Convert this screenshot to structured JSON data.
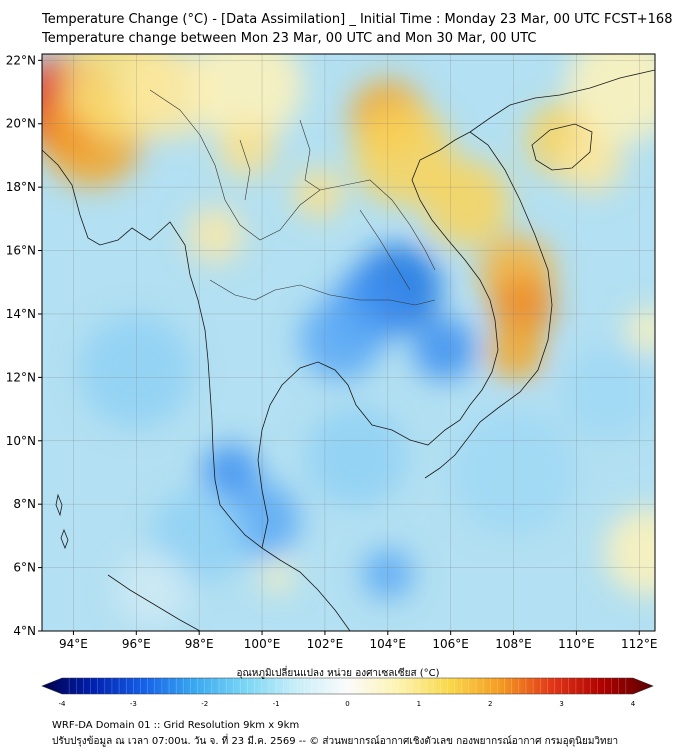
{
  "header": {
    "title_line1": "Temperature Change (°C) - [Data Assimilation] _ Initial Time : Monday 23 Mar, 00 UTC FCST+168",
    "title_line2": "Temperature change between Mon 23 Mar, 00 UTC and Mon 30 Mar, 00 UTC"
  },
  "map": {
    "lon_range": [
      93,
      112.5
    ],
    "lat_range": [
      4,
      22.2
    ],
    "lon_ticks": [
      {
        "value": 94,
        "label": "94°E"
      },
      {
        "value": 96,
        "label": "96°E"
      },
      {
        "value": 98,
        "label": "98°E"
      },
      {
        "value": 100,
        "label": "100°E"
      },
      {
        "value": 102,
        "label": "102°E"
      },
      {
        "value": 104,
        "label": "104°E"
      },
      {
        "value": 106,
        "label": "106°E"
      },
      {
        "value": 108,
        "label": "108°E"
      },
      {
        "value": 110,
        "label": "110°E"
      },
      {
        "value": 112,
        "label": "112°E"
      }
    ],
    "lat_ticks": [
      {
        "value": 4,
        "label": "4°N"
      },
      {
        "value": 6,
        "label": "6°N"
      },
      {
        "value": 8,
        "label": "8°N"
      },
      {
        "value": 10,
        "label": "10°N"
      },
      {
        "value": 12,
        "label": "12°N"
      },
      {
        "value": 14,
        "label": "14°N"
      },
      {
        "value": 16,
        "label": "16°N"
      },
      {
        "value": 18,
        "label": "18°N"
      },
      {
        "value": 20,
        "label": "20°N"
      },
      {
        "value": 22,
        "label": "22°N"
      }
    ],
    "grid": true,
    "field_base_color": "#b3e0f2",
    "field_blobs": [
      {
        "lon": 93.8,
        "lat": 20.6,
        "r": 1.6,
        "color": "#e8281e"
      },
      {
        "lon": 94.6,
        "lat": 19.6,
        "r": 1.6,
        "color": "#f5a623"
      },
      {
        "lon": 95.5,
        "lat": 21.3,
        "r": 1.8,
        "color": "#f8e27a"
      },
      {
        "lon": 97.0,
        "lat": 21.0,
        "r": 1.5,
        "color": "#fde8a0"
      },
      {
        "lon": 99.5,
        "lat": 21.2,
        "r": 1.8,
        "color": "#fff2b8"
      },
      {
        "lon": 104.0,
        "lat": 20.2,
        "r": 1.2,
        "color": "#f5a623"
      },
      {
        "lon": 104.5,
        "lat": 19.0,
        "r": 1.6,
        "color": "#fad45a"
      },
      {
        "lon": 106.5,
        "lat": 17.5,
        "r": 1.4,
        "color": "#fad45a"
      },
      {
        "lon": 108.1,
        "lat": 15.3,
        "r": 1.2,
        "color": "#f7b23a"
      },
      {
        "lon": 108.3,
        "lat": 14.2,
        "r": 1.0,
        "color": "#f08a22"
      },
      {
        "lon": 108.1,
        "lat": 12.8,
        "r": 0.9,
        "color": "#f5a623"
      },
      {
        "lon": 109.6,
        "lat": 19.5,
        "r": 1.2,
        "color": "#fad45a"
      },
      {
        "lon": 110.5,
        "lat": 18.8,
        "r": 1.0,
        "color": "#fde8a0"
      },
      {
        "lon": 111.5,
        "lat": 21.2,
        "r": 1.8,
        "color": "#fff2b8"
      },
      {
        "lon": 99.5,
        "lat": 19.2,
        "r": 0.9,
        "color": "#fbe08a"
      },
      {
        "lon": 101.8,
        "lat": 17.8,
        "r": 0.8,
        "color": "#fbe08a"
      },
      {
        "lon": 98.5,
        "lat": 16.5,
        "r": 0.9,
        "color": "#fbe9a8"
      },
      {
        "lon": 112.3,
        "lat": 13.5,
        "r": 0.7,
        "color": "#fff2b8"
      },
      {
        "lon": 112.3,
        "lat": 6.5,
        "r": 1.4,
        "color": "#fff2b8"
      },
      {
        "lon": 104.3,
        "lat": 14.8,
        "r": 1.4,
        "color": "#1a73e0"
      },
      {
        "lon": 103.4,
        "lat": 14.2,
        "r": 1.2,
        "color": "#3c8ff0"
      },
      {
        "lon": 105.8,
        "lat": 12.9,
        "r": 1.0,
        "color": "#3c8ff0"
      },
      {
        "lon": 102.5,
        "lat": 13.2,
        "r": 1.3,
        "color": "#5aa8f5"
      },
      {
        "lon": 99.0,
        "lat": 9.0,
        "r": 0.9,
        "color": "#3c8ff0"
      },
      {
        "lon": 100.0,
        "lat": 7.5,
        "r": 1.2,
        "color": "#5aa8f5"
      },
      {
        "lon": 104.0,
        "lat": 5.8,
        "r": 0.8,
        "color": "#5aa8f5"
      },
      {
        "lon": 96.0,
        "lat": 12.2,
        "r": 1.8,
        "color": "#8fd0f5"
      },
      {
        "lon": 98.0,
        "lat": 7.0,
        "r": 1.5,
        "color": "#8fd0f5"
      },
      {
        "lon": 108.0,
        "lat": 9.0,
        "r": 2.0,
        "color": "#9fd8f5"
      },
      {
        "lon": 103.0,
        "lat": 9.5,
        "r": 1.6,
        "color": "#8fd0f5"
      },
      {
        "lon": 111.0,
        "lat": 11.5,
        "r": 1.5,
        "color": "#9fd8f5"
      },
      {
        "lon": 100.5,
        "lat": 5.7,
        "r": 0.5,
        "color": "#fff2b8"
      },
      {
        "lon": 96.5,
        "lat": 5.3,
        "r": 1.2,
        "color": "#cfeaf4"
      }
    ]
  },
  "colorbar": {
    "label": "อุณหภูมิเปลี่ยนแปลง หน่วย องศาเซลเซียส (°C)",
    "min": -4,
    "max": 4,
    "ticks": [
      {
        "value": -4,
        "label": "-4"
      },
      {
        "value": -3,
        "label": "-3"
      },
      {
        "value": -2,
        "label": "-2"
      },
      {
        "value": -1,
        "label": "-1"
      },
      {
        "value": 0,
        "label": "0"
      },
      {
        "value": 1,
        "label": "1"
      },
      {
        "value": 2,
        "label": "2"
      },
      {
        "value": 3,
        "label": "3"
      },
      {
        "value": 4,
        "label": "4"
      }
    ],
    "stops": [
      "#00004a",
      "#0020b0",
      "#1560e8",
      "#39a9f0",
      "#7ad6f5",
      "#c9eef8",
      "#fbfbfb",
      "#fdf3b0",
      "#f9d84a",
      "#f59b22",
      "#e23818",
      "#b00000",
      "#5a0000"
    ]
  },
  "footer": {
    "line1": "WRF-DA Domain 01 :: Grid Resolution 9km x 9km",
    "line2": "ปรับปรุงข้อมูล ณ เวลา 07:00น. วัน จ. ที่ 23 มี.ค. 2569 -- © ส่วนพยากรณ์อากาศเชิงตัวเลข กองพยากรณ์อากาศ กรมอุตุนิยมวิทยา"
  }
}
